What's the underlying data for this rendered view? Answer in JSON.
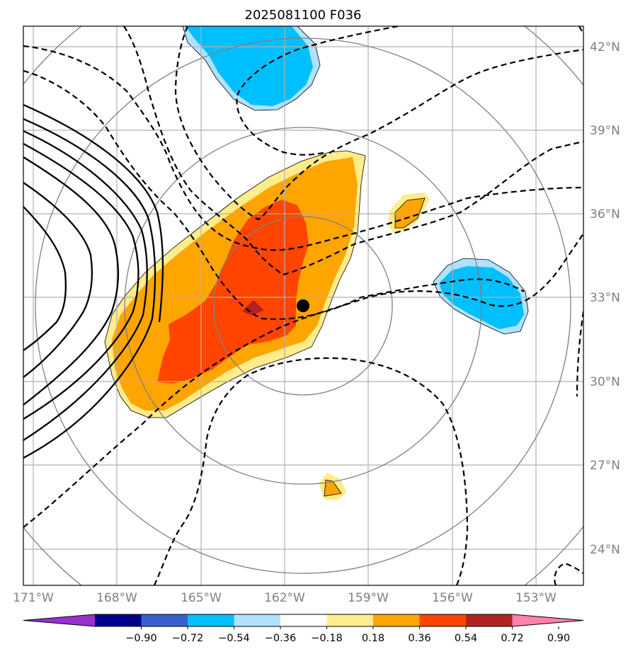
{
  "title": "2025081100 F036",
  "lat_labels": [
    "42°N",
    "39°N",
    "36°N",
    "33°N",
    "30°N",
    "27°N",
    "24°N"
  ],
  "lon_labels": [
    "171°W",
    "168°W",
    "165°W",
    "162°W",
    "159°W",
    "156°W",
    "153°W"
  ],
  "colorbar": {
    "tick_labels": [
      "−0.90",
      "−0.72",
      "−0.54",
      "−0.36",
      "−0.18",
      "0.18",
      "0.36",
      "0.54",
      "0.72",
      "0.90"
    ],
    "colors": [
      "#9932cc",
      "#00008b",
      "#3a5fcd",
      "#00bfff",
      "#b0e2ff",
      "#ffffff",
      "#ffec8b",
      "#ffa500",
      "#ff4500",
      "#b22222",
      "#ff82ab"
    ]
  },
  "center_marker": {
    "lat": 32.8,
    "lon": -161.3
  },
  "colors": {
    "grid": "#b0b0b0",
    "range_rings": "#808080",
    "contour": "#000000"
  }
}
